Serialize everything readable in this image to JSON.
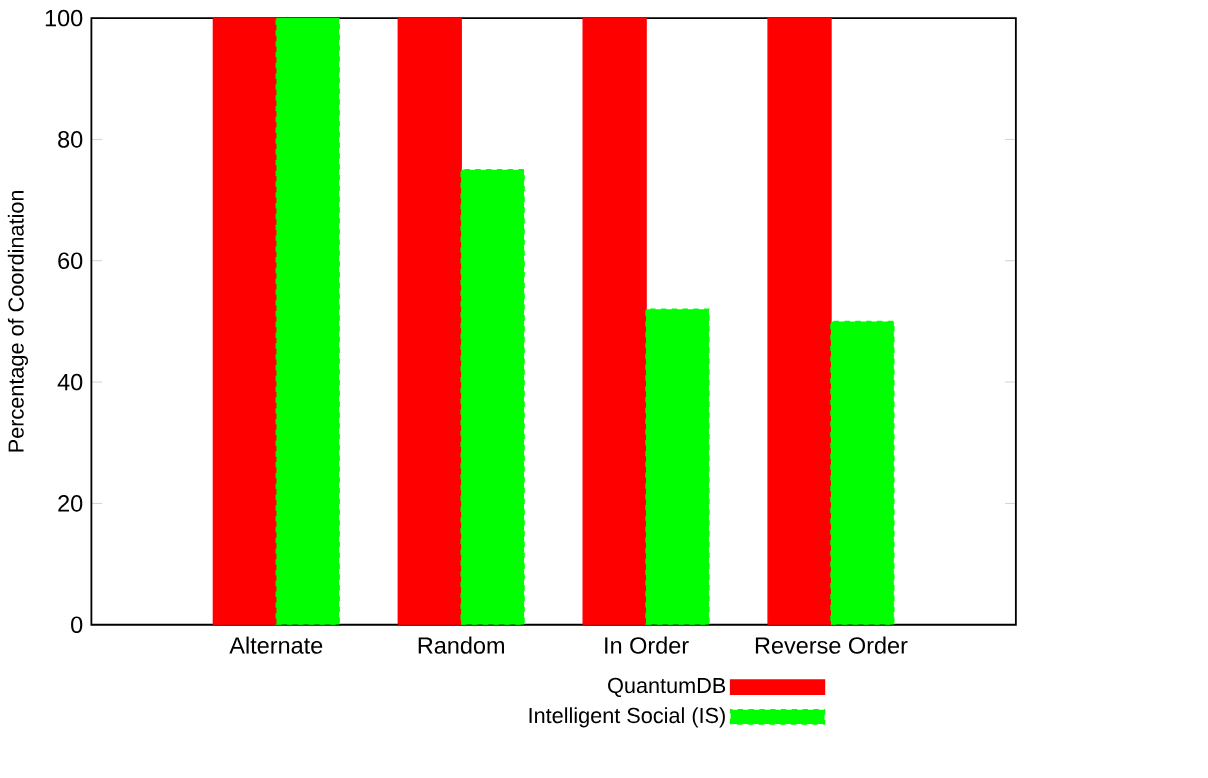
{
  "chart_data": {
    "type": "bar",
    "ylabel": "Percentage of Coordination",
    "categories": [
      "Alternate",
      "Random",
      "In Order",
      "Reverse Order"
    ],
    "series": [
      {
        "name": "QuantumDB",
        "color": "#ff0000",
        "line_style": "solid",
        "values": [
          100,
          100,
          100,
          100
        ]
      },
      {
        "name": "Intelligent Social (IS)",
        "color": "#00ff00",
        "line_style": "dashed",
        "values": [
          100,
          75,
          52,
          50
        ]
      }
    ],
    "ylim": [
      0,
      100
    ],
    "yticks": [
      0,
      20,
      40,
      60,
      80,
      100
    ],
    "grid": false,
    "legend": "bottom"
  }
}
